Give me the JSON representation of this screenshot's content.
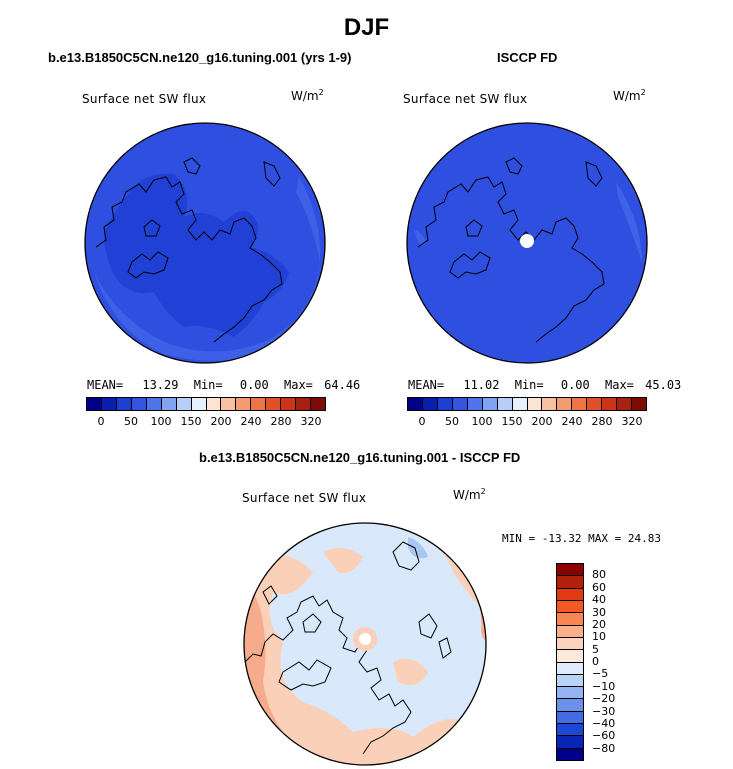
{
  "title": "DJF",
  "colors": {
    "levels_abs": [
      "#00008b",
      "#0a1fae",
      "#1c3fcf",
      "#3353e0",
      "#4d74ea",
      "#7ea4f2",
      "#b7cff8",
      "#e4f0fc",
      "#fde3d3",
      "#f9c0a1",
      "#f39b72",
      "#ec7445",
      "#e2502a",
      "#cb3418",
      "#a8200f",
      "#7d0b06"
    ],
    "levels_diff": [
      "#8b0000",
      "#b0200a",
      "#e03a12",
      "#f25a22",
      "#f98552",
      "#fbb08d",
      "#fdd3bd",
      "#fde8dc",
      "#ddebfb",
      "#b9d3f6",
      "#95b5f0",
      "#6b91ea",
      "#416ce3",
      "#1f47d5",
      "#0a25b4",
      "#00008b"
    ],
    "ocean_abs": "#2e4fe0",
    "land_abs": "#2140d6",
    "diff_base": "#d9e8fa",
    "diff_warm": "#fbd0b8"
  },
  "panels": [
    {
      "title": "b.e13.B1850C5CN.ne120_g16.tuning.001 (yrs 1-9)",
      "var": "Surface net SW flux",
      "units_base": "W/m",
      "units_exp": "2",
      "stats": {
        "mean_label": "MEAN=",
        "mean": "13.29",
        "min_label": "Min=",
        "min": "0.00",
        "max_label": "Max=",
        "max": "64.46"
      },
      "colorbar_ticks": [
        "0",
        "50",
        "100",
        "150",
        "200",
        "240",
        "280",
        "320"
      ]
    },
    {
      "title": "ISCCP FD",
      "var": "Surface net SW flux",
      "units_base": "W/m",
      "units_exp": "2",
      "stats": {
        "mean_label": "MEAN=",
        "mean": "11.02",
        "min_label": "Min=",
        "min": "0.00",
        "max_label": "Max=",
        "max": "45.03"
      },
      "colorbar_ticks": [
        "0",
        "50",
        "100",
        "150",
        "200",
        "240",
        "280",
        "320"
      ]
    }
  ],
  "diff": {
    "title": "b.e13.B1850C5CN.ne120_g16.tuning.001 - ISCCP FD",
    "var": "Surface net SW flux",
    "units_base": "W/m",
    "units_exp": "2",
    "minmax": "MIN = -13.32 MAX =  24.83",
    "colorbar_ticks": [
      "80",
      "60",
      "40",
      "30",
      "20",
      "10",
      "5",
      "0",
      "-5",
      "-10",
      "-20",
      "-30",
      "-40",
      "-60",
      "-80"
    ]
  }
}
